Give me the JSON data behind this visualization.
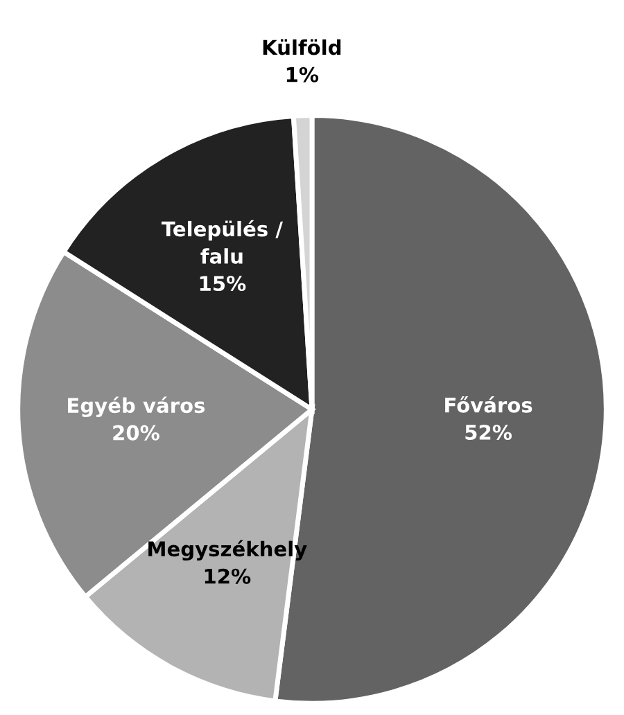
{
  "chart_data": {
    "type": "pie",
    "categories": [
      "Főváros",
      "Megyszékhely",
      "Egyéb város",
      "Település /\nfalu",
      "Külföld"
    ],
    "values": [
      52,
      12,
      20,
      15,
      1
    ],
    "colors": [
      "#636363",
      "#b3b3b3",
      "#8c8c8c",
      "#222222",
      "#d4d4d4"
    ],
    "value_labels": [
      "52%",
      "12%",
      "20%",
      "15%",
      "1%"
    ],
    "legend": false
  }
}
